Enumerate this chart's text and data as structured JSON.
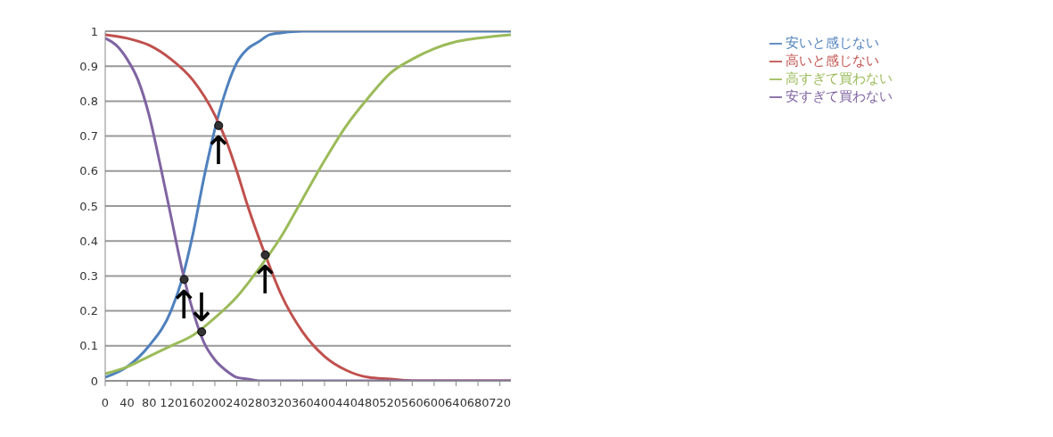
{
  "chart_data": {
    "type": "line",
    "legend": "right",
    "grid": "y",
    "xlim": [
      0,
      740
    ],
    "xticks": [
      0,
      40,
      80,
      120,
      160,
      200,
      240,
      280,
      320,
      360,
      400,
      440,
      480,
      520,
      560,
      600,
      640,
      680,
      720
    ],
    "ylim": [
      0,
      1
    ],
    "yticks": [
      0,
      0.1,
      0.2,
      0.3,
      0.4,
      0.5,
      0.6,
      0.7,
      0.8,
      0.9,
      1
    ],
    "series": [
      {
        "name": "安いと感じない",
        "color": "#4f81bd",
        "x": [
          0,
          40,
          80,
          120,
          140,
          160,
          180,
          200,
          220,
          240,
          260,
          280,
          300,
          320,
          360,
          400,
          740
        ],
        "values": [
          0.01,
          0.04,
          0.1,
          0.2,
          0.29,
          0.42,
          0.58,
          0.72,
          0.83,
          0.91,
          0.95,
          0.97,
          0.99,
          0.995,
          1,
          1,
          1
        ]
      },
      {
        "name": "高いと感じない",
        "color": "#c0504d",
        "x": [
          0,
          40,
          80,
          120,
          160,
          200,
          220,
          240,
          260,
          280,
          292,
          320,
          360,
          400,
          440,
          480,
          520,
          560,
          740
        ],
        "values": [
          0.99,
          0.98,
          0.96,
          0.92,
          0.86,
          0.76,
          0.69,
          0.6,
          0.5,
          0.41,
          0.36,
          0.25,
          0.14,
          0.07,
          0.03,
          0.01,
          0.005,
          0,
          0
        ]
      },
      {
        "name": "高すぎて買わない",
        "color": "#9bbb59",
        "x": [
          0,
          40,
          80,
          120,
          160,
          200,
          240,
          280,
          320,
          360,
          400,
          440,
          480,
          520,
          560,
          600,
          640,
          680,
          740
        ],
        "values": [
          0.02,
          0.04,
          0.07,
          0.1,
          0.13,
          0.18,
          0.24,
          0.32,
          0.41,
          0.52,
          0.63,
          0.73,
          0.81,
          0.88,
          0.92,
          0.95,
          0.97,
          0.98,
          0.99
        ]
      },
      {
        "name": "安すぎて買わない",
        "color": "#8064a2",
        "x": [
          0,
          20,
          40,
          60,
          80,
          100,
          120,
          140,
          160,
          180,
          200,
          220,
          240,
          260,
          280,
          740
        ],
        "values": [
          0.98,
          0.96,
          0.92,
          0.86,
          0.76,
          0.62,
          0.47,
          0.32,
          0.2,
          0.11,
          0.06,
          0.03,
          0.01,
          0.005,
          0,
          0
        ]
      },
      {
        "type": "scatter",
        "color": "#333333",
        "x": [
          144,
          176,
          207,
          292
        ],
        "values": [
          0.29,
          0.14,
          0.73,
          0.36
        ]
      }
    ],
    "annotations": [
      {
        "text": "↑",
        "x": 144,
        "y": 0.29
      },
      {
        "text": "↓",
        "x": 176,
        "y": 0.14
      },
      {
        "text": "↑",
        "x": 207,
        "y": 0.73
      },
      {
        "text": "↑",
        "x": 292,
        "y": 0.36
      }
    ]
  }
}
